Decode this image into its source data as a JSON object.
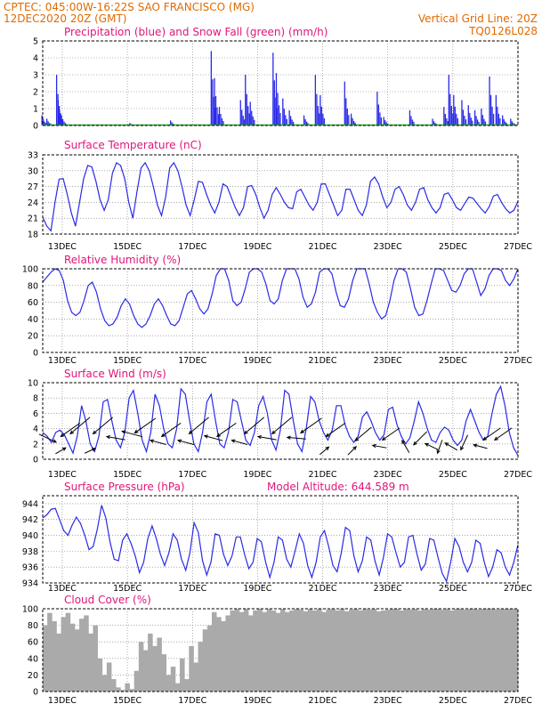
{
  "header": {
    "line1_left": "CPTEC:   045:00W-16:22S   SAO FRANCISCO (MG)",
    "line2_left": "12DEC2020 20Z (GMT)",
    "line2_right": "Vertical Grid Line: 20Z",
    "line3_right": "TQ0126L028"
  },
  "colors": {
    "header": "#e06a00",
    "title": "#e0157a",
    "series": "#2a2ae8",
    "snow": "#22aa22",
    "cloud": "#aaaaaa",
    "wind_arrow": "#000000"
  },
  "chart_data": [
    {
      "type": "bar",
      "title": "Precipitation (blue) and Snow Fall (green) (mm/h)",
      "ylim": [
        0,
        5
      ],
      "yticks": [
        "0",
        "1",
        "2",
        "3",
        "4",
        "5"
      ],
      "xticks": [
        "13DEC",
        "15DEC",
        "17DEC",
        "19DEC",
        "21DEC",
        "23DEC",
        "25DEC",
        "27DEC"
      ],
      "xticks_shown": false,
      "x_start_day": 12.4,
      "x_end_day": 27.0,
      "bursts": [
        [
          12.4,
          0.6
        ],
        [
          12.55,
          0.4
        ],
        [
          12.85,
          3.0
        ],
        [
          12.9,
          1.5
        ],
        [
          13.0,
          0.6
        ],
        [
          15.1,
          0.15
        ],
        [
          16.35,
          0.3
        ],
        [
          17.6,
          4.4
        ],
        [
          17.7,
          2.8
        ],
        [
          17.85,
          1.1
        ],
        [
          18.5,
          1.5
        ],
        [
          18.65,
          3.0
        ],
        [
          18.8,
          1.4
        ],
        [
          19.5,
          4.3
        ],
        [
          19.6,
          3.1
        ],
        [
          19.8,
          1.6
        ],
        [
          20.0,
          0.9
        ],
        [
          20.45,
          0.6
        ],
        [
          20.8,
          3.0
        ],
        [
          20.95,
          1.8
        ],
        [
          21.7,
          2.6
        ],
        [
          21.9,
          0.7
        ],
        [
          22.7,
          2.0
        ],
        [
          22.9,
          0.5
        ],
        [
          23.7,
          0.9
        ],
        [
          24.4,
          0.4
        ],
        [
          24.75,
          1.1
        ],
        [
          24.9,
          3.0
        ],
        [
          25.05,
          1.8
        ],
        [
          25.3,
          1.5
        ],
        [
          25.5,
          1.2
        ],
        [
          25.7,
          0.9
        ],
        [
          25.9,
          1.0
        ],
        [
          26.15,
          2.9
        ],
        [
          26.35,
          1.8
        ],
        [
          26.55,
          0.6
        ],
        [
          26.8,
          0.4
        ]
      ],
      "snow": 0
    },
    {
      "type": "line",
      "title": "Surface Temperature (nC)",
      "ylim": [
        18,
        33
      ],
      "yticks": [
        "18",
        "21",
        "24",
        "27",
        "30",
        "33"
      ],
      "xticks": [
        "13DEC",
        "15DEC",
        "17DEC",
        "19DEC",
        "21DEC",
        "23DEC",
        "25DEC",
        "27DEC"
      ],
      "x_start_day": 12.4,
      "x_end_day": 27.0,
      "y": [
        21.2,
        19.5,
        18.6,
        24.0,
        28.4,
        28.5,
        25.5,
        22.0,
        19.5,
        24.0,
        28.5,
        31.0,
        30.7,
        28.0,
        24.5,
        22.5,
        24.5,
        29.5,
        31.5,
        31.0,
        28.5,
        24.0,
        21.0,
        26.0,
        30.5,
        31.5,
        30.0,
        27.0,
        23.5,
        21.5,
        25.0,
        30.5,
        31.5,
        30.0,
        27.0,
        23.5,
        21.5,
        24.5,
        28.0,
        27.8,
        25.5,
        23.5,
        22.0,
        24.0,
        27.5,
        27.0,
        25.0,
        23.0,
        21.5,
        23.0,
        27.0,
        27.2,
        25.5,
        23.0,
        21.0,
        22.5,
        25.5,
        26.8,
        25.5,
        24.0,
        23.0,
        22.8,
        26.0,
        26.5,
        25.0,
        23.5,
        22.5,
        24.0,
        27.5,
        27.5,
        25.5,
        23.5,
        21.5,
        22.5,
        26.5,
        26.5,
        24.5,
        22.5,
        21.5,
        23.5,
        28.0,
        28.8,
        27.5,
        25.0,
        23.0,
        24.0,
        26.5,
        27.0,
        25.5,
        23.5,
        22.5,
        24.0,
        26.5,
        26.8,
        24.5,
        23.0,
        22.0,
        23.0,
        25.5,
        25.8,
        24.5,
        23.0,
        22.5,
        23.8,
        25.0,
        24.8,
        23.8,
        22.8,
        22.0,
        23.2,
        25.2,
        25.5,
        24.0,
        22.8,
        22.0,
        22.5,
        24.2
      ]
    },
    {
      "type": "line",
      "title": "Relative Humidity (%)",
      "ylim": [
        0,
        100
      ],
      "yticks": [
        "0",
        "20",
        "40",
        "60",
        "80",
        "100"
      ],
      "xticks": [
        "13DEC",
        "15DEC",
        "17DEC",
        "19DEC",
        "21DEC",
        "23DEC",
        "25DEC",
        "27DEC"
      ],
      "x_start_day": 12.4,
      "x_end_day": 27.0,
      "y": [
        84,
        90,
        96,
        100,
        98,
        86,
        62,
        48,
        44,
        48,
        62,
        80,
        84,
        72,
        52,
        38,
        32,
        34,
        42,
        56,
        64,
        58,
        44,
        34,
        30,
        34,
        44,
        58,
        64,
        56,
        44,
        34,
        32,
        38,
        54,
        70,
        74,
        64,
        52,
        46,
        52,
        70,
        92,
        100,
        100,
        86,
        62,
        56,
        60,
        76,
        96,
        100,
        100,
        96,
        82,
        62,
        58,
        64,
        86,
        100,
        100,
        100,
        88,
        66,
        54,
        58,
        72,
        96,
        100,
        100,
        94,
        72,
        56,
        54,
        64,
        86,
        100,
        100,
        100,
        82,
        60,
        48,
        40,
        44,
        62,
        86,
        100,
        100,
        96,
        76,
        54,
        44,
        46,
        62,
        82,
        100,
        100,
        98,
        86,
        74,
        72,
        80,
        94,
        100,
        100,
        84,
        68,
        76,
        92,
        100,
        100,
        98,
        86,
        80,
        88,
        100
      ]
    },
    {
      "type": "line",
      "title": "Surface Wind (m/s)",
      "ylim": [
        0,
        10
      ],
      "yticks": [
        "0",
        "2",
        "4",
        "6",
        "8",
        "10"
      ],
      "xticks": [
        "13DEC",
        "15DEC",
        "17DEC",
        "19DEC",
        "21DEC",
        "23DEC",
        "25DEC",
        "27DEC"
      ],
      "x_start_day": 12.4,
      "x_end_day": 27.0,
      "y": [
        3.5,
        3.0,
        2.2,
        3.5,
        3.8,
        3.2,
        2.0,
        0.8,
        3.0,
        7.0,
        5.0,
        2.0,
        1.0,
        3.0,
        7.5,
        7.8,
        5.0,
        2.5,
        1.5,
        3.5,
        8.0,
        9.0,
        6.0,
        2.5,
        1.0,
        3.5,
        8.5,
        7.0,
        4.0,
        2.0,
        1.5,
        4.0,
        9.2,
        8.5,
        5.0,
        2.0,
        1.0,
        3.5,
        7.5,
        8.5,
        5.0,
        2.0,
        1.5,
        3.5,
        7.8,
        7.5,
        5.0,
        2.5,
        1.8,
        3.5,
        7.0,
        8.2,
        6.0,
        2.5,
        1.2,
        3.8,
        9.0,
        8.5,
        5.0,
        2.0,
        1.0,
        4.0,
        8.2,
        7.5,
        5.0,
        3.5,
        2.5,
        3.8,
        7.0,
        7.0,
        4.5,
        3.0,
        2.2,
        3.0,
        5.5,
        6.2,
        5.0,
        3.5,
        2.5,
        3.2,
        6.5,
        6.8,
        4.5,
        3.0,
        2.0,
        2.8,
        5.0,
        7.5,
        6.0,
        4.0,
        2.5,
        2.2,
        3.5,
        4.2,
        3.8,
        2.5,
        1.8,
        2.5,
        5.0,
        6.5,
        5.0,
        3.5,
        2.5,
        3.0,
        6.0,
        8.5,
        9.5,
        7.0,
        3.5,
        1.5,
        0.5
      ],
      "arrows": [
        [
          12.55,
          -25,
          5
        ],
        [
          12.95,
          30,
          2
        ],
        [
          13.25,
          -145,
          7
        ],
        [
          13.55,
          -140,
          8
        ],
        [
          13.85,
          25,
          2
        ],
        [
          14.25,
          -140,
          8
        ],
        [
          14.65,
          170,
          5
        ],
        [
          15.15,
          165,
          6
        ],
        [
          15.55,
          -145,
          8
        ],
        [
          15.95,
          165,
          4
        ],
        [
          16.35,
          -145,
          7
        ],
        [
          16.8,
          165,
          4
        ],
        [
          17.2,
          -140,
          8
        ],
        [
          17.65,
          165,
          5
        ],
        [
          18.05,
          -145,
          7
        ],
        [
          18.45,
          165,
          4
        ],
        [
          18.9,
          -140,
          8
        ],
        [
          19.3,
          170,
          5
        ],
        [
          19.75,
          -140,
          8
        ],
        [
          20.2,
          175,
          5
        ],
        [
          20.65,
          -145,
          8
        ],
        [
          21.05,
          40,
          2
        ],
        [
          21.4,
          -145,
          7
        ],
        [
          21.9,
          45,
          2
        ],
        [
          22.25,
          -140,
          6
        ],
        [
          22.75,
          170,
          3
        ],
        [
          23.1,
          -145,
          6
        ],
        [
          23.55,
          120,
          3
        ],
        [
          24.0,
          -135,
          5
        ],
        [
          24.35,
          155,
          3
        ],
        [
          24.6,
          -110,
          3
        ],
        [
          24.95,
          150,
          3
        ],
        [
          25.35,
          -115,
          4
        ],
        [
          25.85,
          165,
          3
        ],
        [
          26.2,
          -145,
          6
        ],
        [
          26.55,
          -145,
          6
        ]
      ]
    },
    {
      "type": "line",
      "title": "Surface Pressure (hPa)",
      "annotation": "Model Altitude: 644.589 m",
      "ylim": [
        934,
        945
      ],
      "yticks": [
        "934",
        "936",
        "938",
        "940",
        "942",
        "944"
      ],
      "xticks": [
        "13DEC",
        "15DEC",
        "17DEC",
        "19DEC",
        "21DEC",
        "23DEC",
        "25DEC",
        "27DEC"
      ],
      "x_start_day": 12.4,
      "x_end_day": 27.0,
      "y": [
        942.2,
        942.6,
        943.3,
        943.4,
        942.0,
        940.6,
        940.0,
        941.3,
        942.3,
        941.5,
        940.0,
        938.2,
        938.6,
        940.8,
        943.8,
        942.2,
        939.2,
        937.0,
        936.8,
        939.4,
        940.2,
        939.0,
        937.4,
        935.3,
        936.6,
        939.6,
        941.2,
        939.6,
        937.6,
        936.2,
        937.8,
        940.2,
        939.4,
        937.0,
        935.6,
        937.8,
        941.6,
        940.4,
        936.8,
        935.0,
        936.6,
        940.2,
        940.0,
        937.6,
        936.2,
        937.4,
        939.8,
        939.8,
        937.6,
        935.8,
        936.6,
        939.6,
        939.2,
        936.6,
        934.7,
        936.6,
        939.8,
        939.4,
        937.0,
        936.0,
        938.0,
        940.2,
        939.0,
        936.2,
        934.7,
        936.6,
        939.8,
        940.6,
        938.6,
        936.2,
        935.4,
        937.8,
        941.0,
        940.6,
        937.4,
        935.4,
        936.8,
        939.8,
        939.4,
        936.8,
        935.0,
        937.2,
        940.2,
        939.8,
        937.8,
        936.0,
        936.6,
        939.8,
        940.0,
        937.6,
        935.6,
        936.4,
        939.6,
        939.4,
        937.2,
        935.2,
        934.2,
        936.6,
        939.6,
        938.6,
        936.6,
        935.4,
        936.6,
        939.4,
        939.0,
        936.6,
        934.8,
        936.0,
        938.2,
        937.8,
        936.0,
        935.0,
        936.6,
        938.8
      ]
    },
    {
      "type": "area",
      "title": "Cloud Cover (%)",
      "ylim": [
        0,
        100
      ],
      "yticks": [
        "0",
        "20",
        "40",
        "60",
        "80",
        "100"
      ],
      "xticks": [
        "13DEC",
        "15DEC",
        "17DEC",
        "19DEC",
        "21DEC",
        "23DEC",
        "25DEC",
        "27DEC"
      ],
      "x_start_day": 12.4,
      "x_end_day": 27.0,
      "y": [
        80,
        95,
        85,
        70,
        90,
        95,
        82,
        75,
        88,
        92,
        70,
        80,
        40,
        20,
        35,
        15,
        5,
        2,
        10,
        3,
        25,
        60,
        50,
        70,
        55,
        65,
        45,
        20,
        30,
        10,
        40,
        15,
        55,
        35,
        60,
        75,
        80,
        96,
        90,
        85,
        92,
        98,
        100,
        96,
        100,
        92,
        98,
        100,
        96,
        100,
        98,
        95,
        100,
        96,
        98,
        100,
        99,
        97,
        100,
        98,
        100,
        96,
        99,
        100,
        98,
        100,
        97,
        99,
        100,
        98,
        100,
        99,
        100,
        97,
        98,
        99,
        100,
        100,
        98,
        100,
        99,
        100,
        98,
        100,
        99,
        100,
        100,
        99,
        100,
        98,
        100,
        100,
        99,
        100,
        100,
        99,
        100,
        100,
        100,
        99,
        100,
        100,
        100,
        100
      ]
    }
  ]
}
